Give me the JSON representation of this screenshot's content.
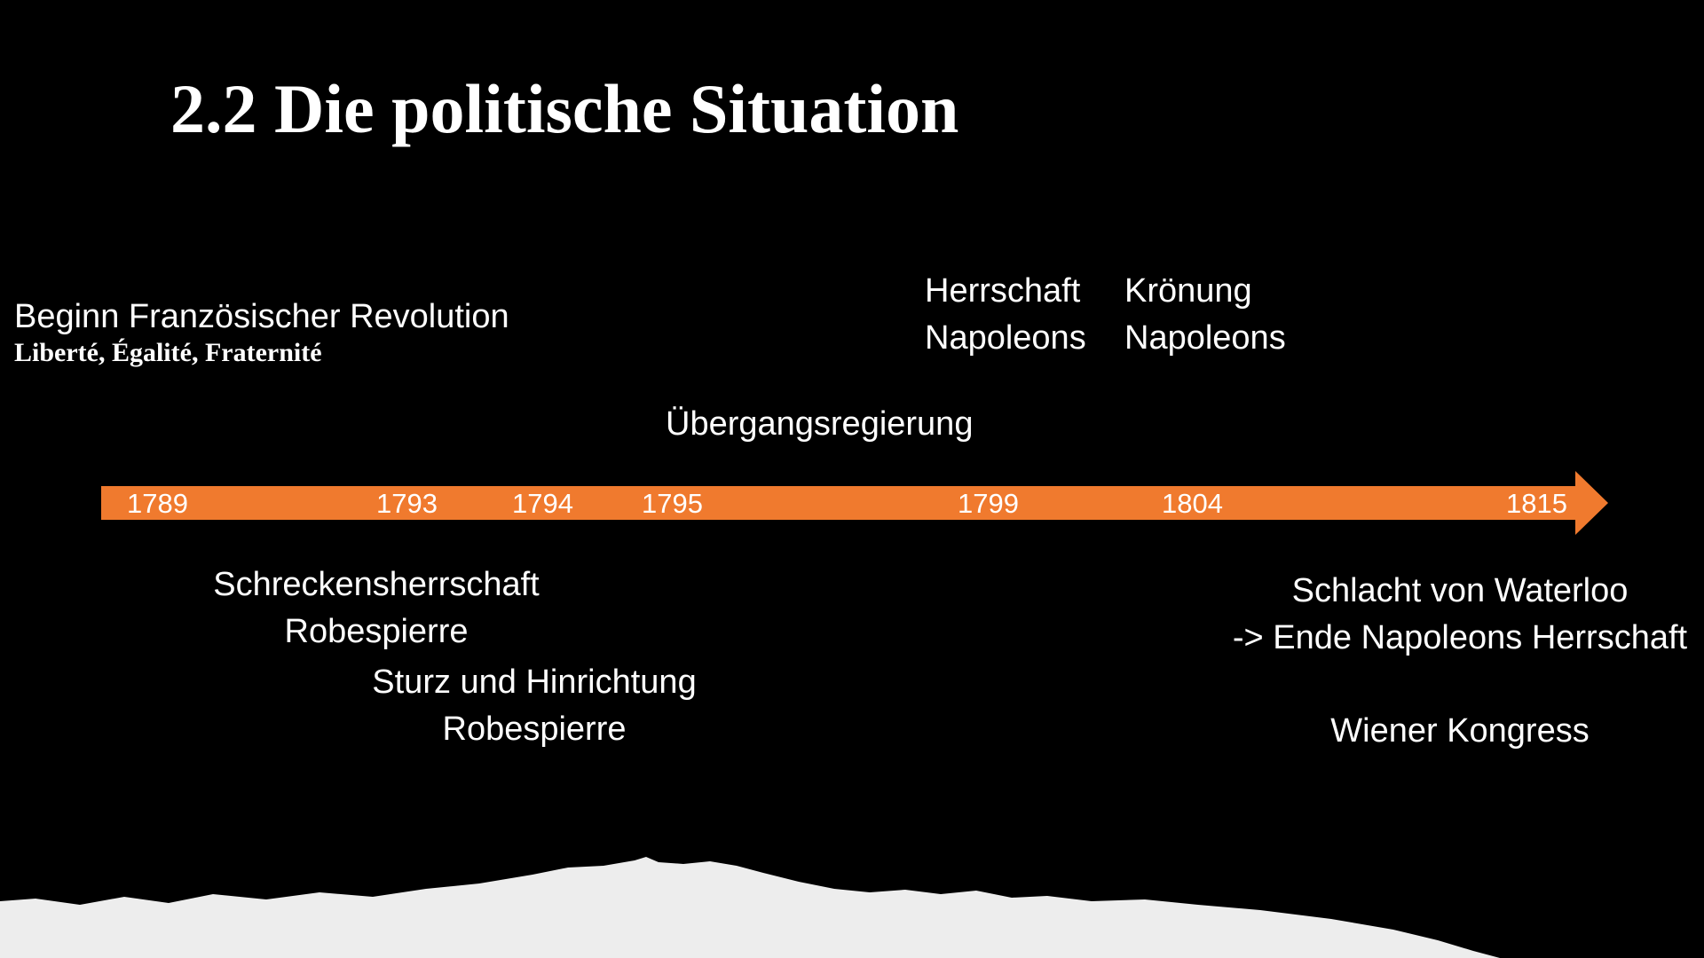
{
  "title": "2.2 Die politische Situation",
  "colors": {
    "background": "#000000",
    "arrow": "#F07A2E",
    "text": "#FFFFFF",
    "paper": "#EDEDED"
  },
  "timeline": {
    "years": [
      "1789",
      "1793",
      "1794",
      "1795",
      "1799",
      "1804",
      "1815"
    ]
  },
  "events": {
    "revolution": {
      "line1": "Beginn Französischer Revolution",
      "motto": "Liberté, Égalité, Fraternité"
    },
    "herrschaft": {
      "line1": "Herrschaft",
      "line2": "Napoleons"
    },
    "kroenung": {
      "line1": "Krönung",
      "line2": "Napoleons"
    },
    "uebergang": {
      "line1": "Übergangsregierung"
    },
    "schrecken": {
      "line1": "Schreckensherrschaft",
      "line2": "Robespierre"
    },
    "sturz": {
      "line1": "Sturz und Hinrichtung",
      "line2": "Robespierre"
    },
    "waterloo": {
      "line1": "Schlacht von Waterloo",
      "line2": "-> Ende Napoleons Herrschaft"
    },
    "wien": {
      "line1": "Wiener Kongress"
    }
  }
}
